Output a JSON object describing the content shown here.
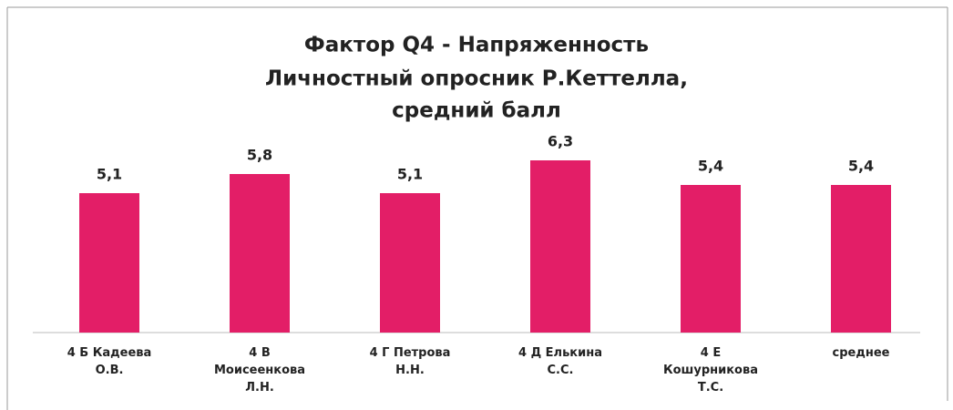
{
  "chart_data": {
    "type": "bar",
    "title": [
      "Фактор Q4 - Напряженность",
      "Личностный опросник Р.Кеттелла,",
      "средний балл"
    ],
    "categories": [
      "4 Б Кадеева О.В.",
      "4 В Моисеенкова Л.Н.",
      "4 Г Петрова Н.Н.",
      "4 Д Елькина С.С.",
      "4 Е Кошурникова Т.С.",
      "среднее"
    ],
    "values": [
      5.1,
      5.8,
      5.1,
      6.3,
      5.4,
      5.4
    ],
    "value_labels": [
      "5,1",
      "5,8",
      "5,1",
      "6,3",
      "5,4",
      "5,4"
    ],
    "color": "#e31e67"
  }
}
